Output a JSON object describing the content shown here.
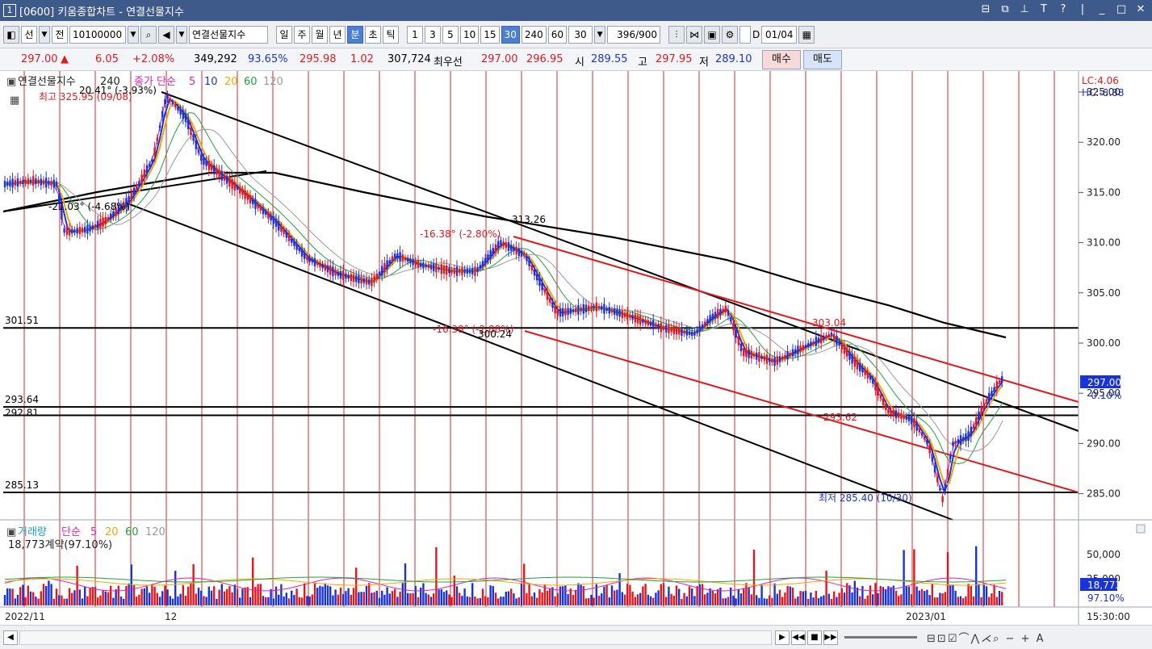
{
  "window": {
    "number": "1",
    "title": "[0600] 키움종합차트 - 연결선물지수"
  },
  "toolbar": {
    "mode1": "선",
    "mode2": "전",
    "code": "10100000",
    "name": "연결선물지수",
    "periods": [
      "일",
      "주",
      "월",
      "년",
      "분",
      "초",
      "틱"
    ],
    "active_period": "분",
    "intervals": [
      "1",
      "3",
      "5",
      "10",
      "15",
      "30",
      "240",
      "60"
    ],
    "active_interval": "30",
    "interval_value": "30",
    "count": "396/900",
    "checkbox_label": "D",
    "date": "01/04"
  },
  "quote": {
    "price": "297.00",
    "change": "6.05",
    "change_pct": "+2.08%",
    "volume": "349,292",
    "vol_ratio": "93.65%",
    "v1": "295.98",
    "v2": "1.02",
    "v3": "307,724",
    "best_label": "최우선",
    "ask": "297.00",
    "bid": "296.95",
    "open_label": "시",
    "open": "289.55",
    "high_label": "고",
    "high": "297.95",
    "low_label": "저",
    "low": "289.10",
    "buy_button": "매수",
    "sell_button": "매도"
  },
  "price_panel": {
    "legend_name": "연결선물지수",
    "legend_interval": "240",
    "legend_ma_label": "종가 단순",
    "ma_periods": [
      "5",
      "10",
      "20",
      "60",
      "120"
    ],
    "ma_colors": [
      "#e01fb3",
      "#1a33d6",
      "#f0a800",
      "#21a03c",
      "#9a9a9a"
    ],
    "high_note": "최고 325.95 (09/08)",
    "low_note": "최저 285.40 (10/30)",
    "lc": "LC:4.06",
    "hc": "HC:-8.88",
    "current_price_box": "297.00",
    "current_pct": "-0.10%",
    "y_ticks": [
      "325.00",
      "320.00",
      "315.00",
      "310.00",
      "305.00",
      "300.00",
      "295.00",
      "290.00",
      "285.00"
    ],
    "hlines": [
      {
        "label": "301.51",
        "value": 301.51
      },
      {
        "label": "293.64",
        "value": 293.64
      },
      {
        "label": "292.81",
        "value": 292.81
      },
      {
        "label": "285.13",
        "value": 285.13
      }
    ],
    "annotations": {
      "a1": "20.41° (-3.93%)",
      "a2": "-21.03° (-4.68%)",
      "a3": "313.26",
      "a4": "-16.38° (-2.80%)",
      "a5": "-16.38° (-2.88%)",
      "a6": "300.24",
      "a7": "303.04",
      "a8": "293.62"
    }
  },
  "volume_panel": {
    "legend_name": "거래량",
    "legend_ma_label": "단순",
    "ma_periods": [
      "5",
      "20",
      "60",
      "120"
    ],
    "current_text": "18,773계약(97.10%)",
    "y_ticks": [
      "50,000",
      "25,000"
    ],
    "current_box": "18,773",
    "current_pct": "97.10%"
  },
  "x_axis": {
    "labels": [
      "2022/11",
      "12",
      "2023/01"
    ],
    "time": "15:30:00"
  },
  "colors": {
    "up": "#e0191e",
    "down": "#1a33d6",
    "trend_black": "#000000",
    "trend_red": "#e0191e",
    "vline": "#d42a2a",
    "title_bg": "#3d5a8a"
  }
}
